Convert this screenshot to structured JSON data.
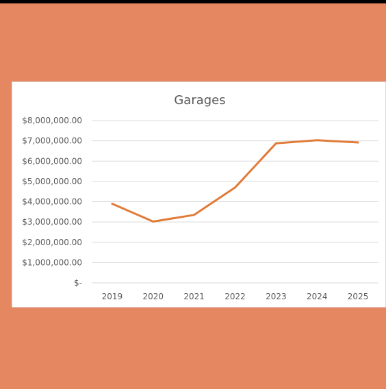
{
  "page": {
    "background_color": "#E58760"
  },
  "chart_data": {
    "type": "line",
    "title": "Garages",
    "categories": [
      "2019",
      "2020",
      "2021",
      "2022",
      "2023",
      "2024",
      "2025"
    ],
    "series": [
      {
        "values": [
          3900000,
          3020000,
          3350000,
          4700000,
          6880000,
          7030000,
          6920000
        ],
        "color": "#E07B39"
      }
    ],
    "ylim": [
      0,
      8000000
    ],
    "y_ticks": [
      0,
      1000000,
      2000000,
      3000000,
      4000000,
      5000000,
      6000000,
      7000000,
      8000000
    ],
    "y_tick_labels": [
      "$-",
      "$1,000,000.00",
      "$2,000,000.00",
      "$3,000,000.00",
      "$4,000,000.00",
      "$5,000,000.00",
      "$6,000,000.00",
      "$7,000,000.00",
      "$8,000,000.00"
    ],
    "grid": true
  }
}
